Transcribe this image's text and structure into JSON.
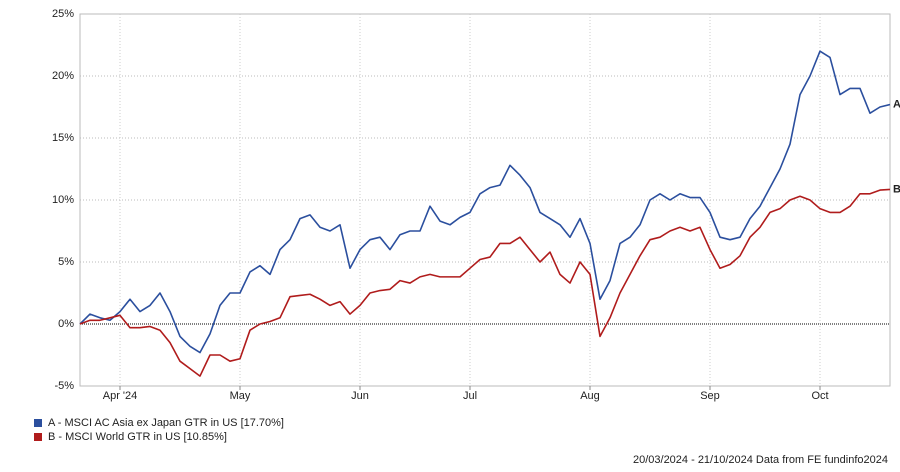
{
  "chart_data": {
    "type": "line",
    "categories": [
      null,
      null,
      null,
      null,
      "Apr '24",
      null,
      null,
      null,
      null,
      null,
      null,
      null,
      null,
      null,
      null,
      null,
      "May",
      null,
      null,
      null,
      null,
      null,
      null,
      null,
      null,
      null,
      null,
      null,
      "Jun",
      null,
      null,
      null,
      null,
      null,
      null,
      null,
      null,
      null,
      null,
      "Jul",
      null,
      null,
      null,
      null,
      null,
      null,
      null,
      null,
      null,
      null,
      null,
      "Aug",
      null,
      null,
      null,
      null,
      null,
      null,
      null,
      null,
      null,
      null,
      null,
      "Sep",
      null,
      null,
      null,
      null,
      null,
      null,
      null,
      null,
      null,
      null,
      "Oct",
      null,
      null,
      null,
      null,
      null,
      null,
      null
    ],
    "series": [
      {
        "name": "A - MSCI AC Asia ex Japan GTR in US [17.70%]",
        "end_label": "A",
        "color": "#2b4f9e",
        "values": [
          0,
          0.8,
          0.5,
          0.3,
          1.0,
          2.0,
          1.0,
          1.5,
          2.5,
          1.0,
          -1.0,
          -1.8,
          -2.3,
          -0.8,
          1.5,
          2.5,
          2.5,
          4.2,
          4.7,
          4.0,
          6.0,
          6.8,
          8.5,
          8.8,
          7.8,
          7.5,
          8.0,
          4.5,
          6.0,
          6.8,
          7.0,
          6.0,
          7.2,
          7.5,
          7.5,
          9.5,
          8.3,
          8.0,
          8.6,
          9.0,
          10.5,
          11.0,
          11.2,
          12.8,
          12.0,
          11.0,
          9.0,
          8.5,
          8.0,
          7.0,
          8.5,
          6.5,
          2.0,
          3.5,
          6.5,
          7.0,
          8.0,
          10.0,
          10.5,
          10.0,
          10.5,
          10.2,
          10.2,
          9.0,
          7.0,
          6.8,
          7.0,
          8.5,
          9.5,
          11.0,
          12.5,
          14.5,
          18.5,
          20.0,
          22.0,
          21.5,
          18.5,
          19.0,
          19.0,
          17.0,
          17.5,
          17.7
        ]
      },
      {
        "name": "B - MSCI World GTR in US [10.85%]",
        "end_label": "B",
        "color": "#b01c1c",
        "values": [
          0,
          0.3,
          0.3,
          0.5,
          0.7,
          -0.3,
          -0.3,
          -0.2,
          -0.5,
          -1.5,
          -3.0,
          -3.6,
          -4.2,
          -2.5,
          -2.5,
          -3.0,
          -2.8,
          -0.5,
          0.0,
          0.2,
          0.5,
          2.2,
          2.3,
          2.4,
          2.0,
          1.5,
          1.8,
          0.8,
          1.5,
          2.5,
          2.7,
          2.8,
          3.5,
          3.3,
          3.8,
          4.0,
          3.8,
          3.8,
          3.8,
          4.5,
          5.2,
          5.4,
          6.5,
          6.5,
          7.0,
          6.0,
          5.0,
          5.8,
          4.0,
          3.3,
          5.0,
          4.0,
          -1.0,
          0.5,
          2.5,
          4.0,
          5.5,
          6.8,
          7.0,
          7.5,
          7.8,
          7.5,
          7.8,
          6.0,
          4.5,
          4.8,
          5.5,
          7.0,
          7.8,
          9.0,
          9.3,
          10.0,
          10.3,
          10.0,
          9.3,
          9.0,
          9.0,
          9.5,
          10.5,
          10.5,
          10.8,
          10.85
        ]
      }
    ],
    "ylim": [
      -5,
      25
    ],
    "yticks": [
      {
        "value": -5,
        "label": "-5%"
      },
      {
        "value": 0,
        "label": "0%"
      },
      {
        "value": 5,
        "label": "5%"
      },
      {
        "value": 10,
        "label": "10%"
      },
      {
        "value": 15,
        "label": "15%"
      },
      {
        "value": 20,
        "label": "20%"
      },
      {
        "value": 25,
        "label": "25%"
      }
    ],
    "grid": true,
    "footer": "20/03/2024 - 21/10/2024 Data from FE fundinfo2024"
  }
}
